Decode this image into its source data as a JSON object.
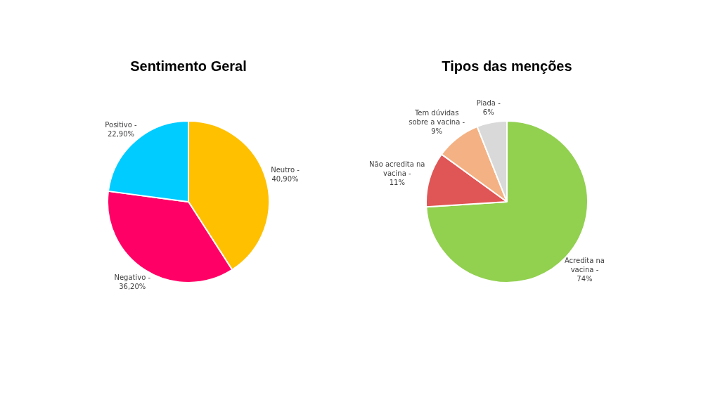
{
  "chart_data": [
    {
      "type": "pie",
      "title": "Sentimento Geral",
      "categories": [
        "Neutro -",
        "Negativo -",
        "Positivo -"
      ],
      "values": [
        40.9,
        36.2,
        22.9
      ],
      "value_labels": [
        "40,90%",
        "36,20%",
        "22,90%"
      ],
      "colors": [
        "#ffc000",
        "#ff0066",
        "#00ccff"
      ],
      "legend": false
    },
    {
      "type": "pie",
      "title": "Tipos das menções",
      "categories": [
        "Acredita na vacina -",
        "Não acredita na vacina -",
        "Tem dúvidas sobre a vacina -",
        "Piada -"
      ],
      "values": [
        74,
        11,
        9,
        6
      ],
      "value_labels": [
        "74%",
        "11%",
        "9%",
        "6%"
      ],
      "colors": [
        "#92d050",
        "#e05555",
        "#f4b183",
        "#d9d9d9"
      ],
      "legend": false
    }
  ]
}
